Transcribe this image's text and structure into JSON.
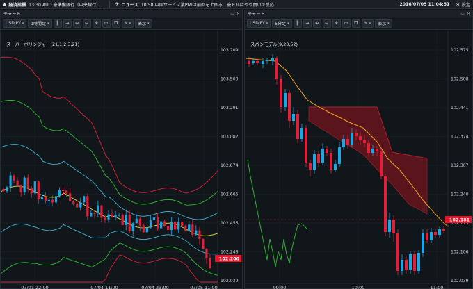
{
  "topbar": {
    "calendar_label": "経済指標",
    "calendar_text": "13:30 AUD 豪準備銀行（中央銀行）...",
    "news_label": "ニュース",
    "news_text": "10:58 中国サービス業PMIは前回を上回る　豪ドルはやや買いで反応",
    "datetime": "2016/07/05 11:04:51",
    "settings_label": "設定"
  },
  "left_chart": {
    "panel_title": "チャート",
    "symbol": "USDJPY",
    "timeframe": "1時間足",
    "display_label": "表示",
    "indicator": "スーパーボリンジャー(21,1,2,3,21)",
    "y_ticks": [
      "103.709",
      "103.500",
      "103.291",
      "103.082",
      "102.874",
      "102.665",
      "102.456",
      "102.248",
      "102.039"
    ],
    "x_ticks": [
      "07/01 22:00",
      "07/04 11:00",
      "07/04 23:00",
      "07/05 11:00"
    ],
    "last_price": "102.200",
    "last_price_value": 102.2,
    "y_range": [
      102.039,
      103.709
    ]
  },
  "right_chart": {
    "panel_title": "チャート",
    "symbol": "USDJPY",
    "timeframe": "5分足",
    "display_label": "表示",
    "indicator": "スパンモデル(9,20,52)",
    "y_ticks": [
      "102.575",
      "102.508",
      "102.441",
      "102.374",
      "102.307",
      "102.240",
      "102.173",
      "102.106",
      "102.039"
    ],
    "x_ticks": [
      "09:00",
      "10:00",
      "11:00"
    ],
    "last_price": "102.181",
    "last_price_value": 102.181,
    "y_range": [
      102.039,
      102.575
    ]
  },
  "colors": {
    "up": "#1ba7e3",
    "down": "#e0203a",
    "badge": "#e8162a",
    "background": "#11161b"
  },
  "icons": [
    "calendar-icon",
    "news-icon",
    "gear-icon",
    "minimize-icon",
    "close-icon",
    "crosshair-icon",
    "zoom-in-icon",
    "zoom-out-icon",
    "candle-icon",
    "pen-icon"
  ]
}
